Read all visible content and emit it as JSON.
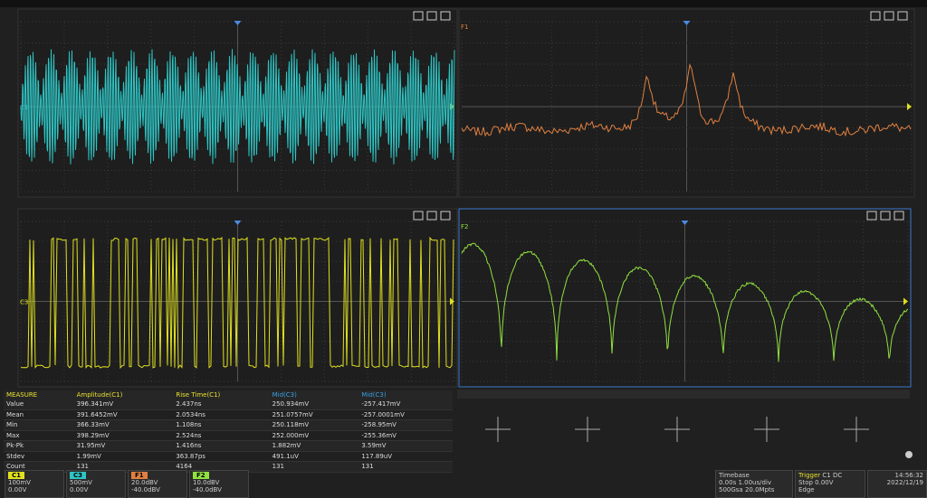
{
  "panels": [
    {
      "label": "C1"
    },
    {
      "label": "F1"
    },
    {
      "label": "C3"
    },
    {
      "label": "F2"
    }
  ],
  "measure": {
    "title": "MEASURE",
    "columns": [
      "Amplitude(C1)",
      "Rise Time(C1)",
      "Mid(C3)",
      "Mid(C3)"
    ],
    "rows": [
      {
        "label": "Value",
        "values": [
          "396.341mV",
          "2.437ns",
          "250.934mV",
          "-257.417mV"
        ]
      },
      {
        "label": "Mean",
        "values": [
          "391.6452mV",
          "2.0534ns",
          "251.0757mV",
          "-257.0001mV"
        ]
      },
      {
        "label": "Min",
        "values": [
          "366.33mV",
          "1.108ns",
          "250.118mV",
          "-258.95mV"
        ]
      },
      {
        "label": "Max",
        "values": [
          "398.29mV",
          "2.524ns",
          "252.000mV",
          "-255.36mV"
        ]
      },
      {
        "label": "Pk-Pk",
        "values": [
          "31.95mV",
          "1.416ns",
          "1.882mV",
          "3.59mV"
        ]
      },
      {
        "label": "Stdev",
        "values": [
          "1.99mV",
          "363.87ps",
          "491.1uV",
          "117.89uV"
        ]
      },
      {
        "label": "Count",
        "values": [
          "131",
          "4164",
          "131",
          "131"
        ]
      }
    ]
  },
  "status": {
    "channels": [
      {
        "label": "C1",
        "scale": "100mV",
        "offset": "0.00V"
      },
      {
        "label": "C3",
        "scale": "500mV",
        "offset": "0.00V"
      },
      {
        "label": "F1",
        "scale": "20.0dBV",
        "offset": "-40.0dBV"
      },
      {
        "label": "F2",
        "scale": "10.0dBV",
        "offset": "-40.0dBV"
      }
    ],
    "timebase": {
      "title": "Timebase",
      "delay": "0.00s",
      "scale": "1.00us/div",
      "rate": "500Gsa",
      "points": "20.0Mpts"
    },
    "trigger": {
      "title": "Trigger",
      "source": "C1 DC",
      "mode": "Stop",
      "level": "0.00V",
      "type": "Edge"
    },
    "time": "14:56:32",
    "date": "2022/12/19"
  }
}
